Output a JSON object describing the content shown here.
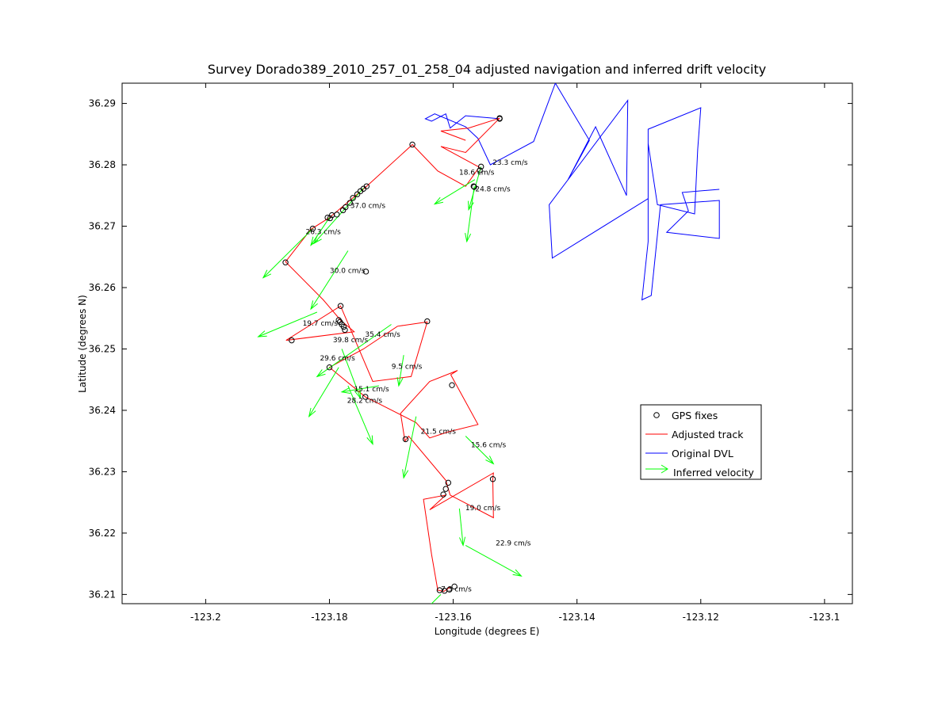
{
  "chart_data": {
    "type": "line",
    "title": "Survey Dorado389_2010_257_01_258_04 adjusted navigation and inferred drift velocity",
    "xlabel": "Longitude (degrees E)",
    "ylabel": "Latitude (degrees N)",
    "xlim": [
      -123.2135,
      -123.0955
    ],
    "ylim": [
      36.2085,
      36.2933
    ],
    "xticks": [
      -123.2,
      -123.18,
      -123.16,
      -123.14,
      -123.12,
      -123.1
    ],
    "yticks": [
      36.21,
      36.22,
      36.23,
      36.24,
      36.25,
      36.26,
      36.27,
      36.28,
      36.29
    ],
    "xtick_labels": [
      "-123.2",
      "-123.18",
      "-123.16",
      "-123.14",
      "-123.12",
      "-123.1"
    ],
    "ytick_labels": [
      "36.21",
      "36.22",
      "36.23",
      "36.24",
      "36.25",
      "36.26",
      "36.27",
      "36.28",
      "36.29"
    ],
    "grid": false,
    "legend_position": "right",
    "colors": {
      "gps": "#000000",
      "adjusted": "#ff0000",
      "dvl": "#0000ff",
      "velocity": "#00ff00"
    },
    "legend": [
      {
        "label": "GPS fixes",
        "kind": "marker",
        "color": "#000000"
      },
      {
        "label": "Adjusted track",
        "kind": "line",
        "color": "#ff0000"
      },
      {
        "label": "Original DVL",
        "kind": "line",
        "color": "#0000ff"
      },
      {
        "label": "Inferred velocity",
        "kind": "arrow",
        "color": "#00ff00"
      }
    ],
    "gps_fixes": [
      [
        -123.1525,
        36.2875
      ],
      [
        -123.1525,
        36.2876
      ],
      [
        -123.1666,
        36.2833
      ],
      [
        -123.1555,
        36.2797
      ],
      [
        -123.1557,
        36.2791
      ],
      [
        -123.1567,
        36.2765
      ],
      [
        -123.1566,
        36.2764
      ],
      [
        -123.174,
        36.2765
      ],
      [
        -123.1745,
        36.2761
      ],
      [
        -123.175,
        36.2757
      ],
      [
        -123.1755,
        36.2752
      ],
      [
        -123.1762,
        36.2746
      ],
      [
        -123.1767,
        36.2738
      ],
      [
        -123.1774,
        36.2731
      ],
      [
        -123.1778,
        36.2726
      ],
      [
        -123.1788,
        36.2719
      ],
      [
        -123.1796,
        36.2718
      ],
      [
        -123.1799,
        36.2713
      ],
      [
        -123.1803,
        36.2714
      ],
      [
        -123.1827,
        36.2696
      ],
      [
        -123.1871,
        36.2641
      ],
      [
        -123.1741,
        36.2626
      ],
      [
        -123.1782,
        36.257
      ],
      [
        -123.1642,
        36.2545
      ],
      [
        -123.1785,
        36.2547
      ],
      [
        -123.1783,
        36.2544
      ],
      [
        -123.178,
        36.254
      ],
      [
        -123.1777,
        36.2536
      ],
      [
        -123.1775,
        36.2531
      ],
      [
        -123.1861,
        36.2514
      ],
      [
        -123.18,
        36.247
      ],
      [
        -123.1742,
        36.2422
      ],
      [
        -123.1602,
        36.2441
      ],
      [
        -123.1677,
        36.2353
      ],
      [
        -123.1608,
        36.2282
      ],
      [
        -123.1612,
        36.2272
      ],
      [
        -123.1616,
        36.2263
      ],
      [
        -123.1536,
        36.2288
      ],
      [
        -123.1598,
        36.2113
      ],
      [
        -123.1606,
        36.2108
      ],
      [
        -123.1614,
        36.2106
      ],
      [
        -123.1622,
        36.2107
      ]
    ],
    "adjusted_track": [
      [
        -123.1605,
        36.2112
      ],
      [
        -123.1615,
        36.2105
      ],
      [
        -123.1625,
        36.2107
      ],
      [
        -123.1635,
        36.2165
      ],
      [
        -123.1648,
        36.2255
      ],
      [
        -123.1612,
        36.2262
      ],
      [
        -123.1638,
        36.2238
      ],
      [
        -123.1535,
        36.2298
      ],
      [
        -123.1536,
        36.2288
      ],
      [
        -123.1535,
        36.2225
      ],
      [
        -123.1605,
        36.2262
      ],
      [
        -123.1612,
        36.2286
      ],
      [
        -123.1672,
        36.2358
      ],
      [
        -123.1678,
        36.235
      ],
      [
        -123.1685,
        36.2395
      ],
      [
        -123.1638,
        36.2447
      ],
      [
        -123.1593,
        36.2465
      ],
      [
        -123.1604,
        36.2458
      ],
      [
        -123.156,
        36.2377
      ],
      [
        -123.1608,
        36.2365
      ],
      [
        -123.1638,
        36.2355
      ],
      [
        -123.166,
        36.238
      ],
      [
        -123.1742,
        36.2422
      ],
      [
        -123.18,
        36.247
      ],
      [
        -123.1745,
        36.25
      ],
      [
        -123.169,
        36.2537
      ],
      [
        -123.1642,
        36.2544
      ],
      [
        -123.1668,
        36.2455
      ],
      [
        -123.173,
        36.2447
      ],
      [
        -123.1782,
        36.257
      ],
      [
        -123.187,
        36.2514
      ],
      [
        -123.176,
        36.2528
      ],
      [
        -123.1782,
        36.2547
      ],
      [
        -123.181,
        36.258
      ],
      [
        -123.1871,
        36.2642
      ],
      [
        -123.183,
        36.2695
      ],
      [
        -123.18,
        36.2714
      ],
      [
        -123.174,
        36.2765
      ],
      [
        -123.1666,
        36.2833
      ],
      [
        -123.1625,
        36.279
      ],
      [
        -123.158,
        36.2765
      ],
      [
        -123.1558,
        36.2796
      ],
      [
        -123.162,
        36.283
      ],
      [
        -123.158,
        36.282
      ],
      [
        -123.1525,
        36.2876
      ],
      [
        -123.1575,
        36.286
      ],
      [
        -123.162,
        36.2855
      ],
      [
        -123.158,
        36.284
      ]
    ],
    "original_dvl": [
      [
        -123.1525,
        36.2875
      ],
      [
        -123.158,
        36.288
      ],
      [
        -123.1605,
        36.286
      ],
      [
        -123.1612,
        36.2883
      ],
      [
        -123.1635,
        36.2871
      ],
      [
        -123.1645,
        36.2875
      ],
      [
        -123.163,
        36.2883
      ],
      [
        -123.158,
        36.2862
      ],
      [
        -123.156,
        36.2843
      ],
      [
        -123.154,
        36.28
      ],
      [
        -123.147,
        36.2838
      ],
      [
        -123.1435,
        36.2933
      ],
      [
        -123.138,
        36.284
      ],
      [
        -123.1415,
        36.2775
      ],
      [
        -123.137,
        36.2862
      ],
      [
        -123.132,
        36.275
      ],
      [
        -123.1318,
        36.2905
      ],
      [
        -123.1445,
        36.2735
      ],
      [
        -123.144,
        36.2648
      ],
      [
        -123.1285,
        36.2745
      ],
      [
        -123.1285,
        36.2858
      ],
      [
        -123.12,
        36.2893
      ],
      [
        -123.1205,
        36.2825
      ],
      [
        -123.121,
        36.272
      ],
      [
        -123.127,
        36.2735
      ],
      [
        -123.1285,
        36.2835
      ],
      [
        -123.1285,
        36.2675
      ],
      [
        -123.1295,
        36.258
      ],
      [
        -123.128,
        36.2587
      ],
      [
        -123.1265,
        36.2735
      ],
      [
        -123.117,
        36.2742
      ],
      [
        -123.117,
        36.268
      ],
      [
        -123.1255,
        36.269
      ],
      [
        -123.122,
        36.2725
      ],
      [
        -123.123,
        36.2755
      ],
      [
        -123.117,
        36.276
      ]
    ],
    "velocity_vectors": [
      {
        "x": -123.1565,
        "y": 36.2776,
        "u": -0.0065,
        "v": -0.004,
        "label": "18.6 cm/s",
        "lx": -123.1562,
        "ly": 36.2784
      },
      {
        "x": -123.1555,
        "y": 36.2797,
        "u": -0.002,
        "v": -0.007,
        "label": "23.3 cm/s",
        "lx": -123.1508,
        "ly": 36.28
      },
      {
        "x": -123.1566,
        "y": 36.2765,
        "u": -0.0012,
        "v": -0.009,
        "label": "24.8 cm/s",
        "lx": -123.1536,
        "ly": 36.2757
      },
      {
        "x": -123.1745,
        "y": 36.2762,
        "u": -0.008,
        "v": -0.009,
        "label": "37.0 cm/s",
        "lx": -123.1738,
        "ly": 36.273
      },
      {
        "x": -123.18,
        "y": 36.2714,
        "u": -0.003,
        "v": -0.0045,
        "label": "26.3 cm/s",
        "lx": -123.181,
        "ly": 36.2687
      },
      {
        "x": -123.1827,
        "y": 36.2696,
        "u": -0.008,
        "v": -0.008,
        "label": "",
        "lx": 0,
        "ly": 0
      },
      {
        "x": -123.177,
        "y": 36.266,
        "u": -0.006,
        "v": -0.0095,
        "label": "30.0 cm/s",
        "lx": -123.1771,
        "ly": 36.2624
      },
      {
        "x": -123.182,
        "y": 36.256,
        "u": -0.0095,
        "v": -0.004,
        "label": "19.7 cm/s",
        "lx": -123.1815,
        "ly": 36.2538
      },
      {
        "x": -123.1785,
        "y": 36.247,
        "u": -0.0048,
        "v": -0.008,
        "label": "39.8 cm/s",
        "lx": -123.1766,
        "ly": 36.2511
      },
      {
        "x": -123.17,
        "y": 36.254,
        "u": -0.012,
        "v": -0.0085,
        "label": "35.4 cm/s",
        "lx": -123.1714,
        "ly": 36.252
      },
      {
        "x": -123.178,
        "y": 36.25,
        "u": 0.003,
        "v": -0.008,
        "label": "29.6 cm/s",
        "lx": -123.1787,
        "ly": 36.2481
      },
      {
        "x": -123.168,
        "y": 36.249,
        "u": -0.0008,
        "v": -0.005,
        "label": "9.5 cm/s",
        "lx": -123.1675,
        "ly": 36.2468
      },
      {
        "x": -123.172,
        "y": 36.244,
        "u": -0.006,
        "v": -0.001,
        "label": "15.1 cm/s",
        "lx": -123.1732,
        "ly": 36.2431
      },
      {
        "x": -123.177,
        "y": 36.244,
        "u": 0.004,
        "v": -0.0095,
        "label": "28.2 cm/s",
        "lx": -123.1743,
        "ly": 36.2412
      },
      {
        "x": -123.166,
        "y": 36.239,
        "u": -0.002,
        "v": -0.01,
        "label": "21.5 cm/s",
        "lx": -123.1624,
        "ly": 36.2362
      },
      {
        "x": -123.158,
        "y": 36.2358,
        "u": 0.0045,
        "v": -0.0045,
        "label": "15.6 cm/s",
        "lx": -123.1543,
        "ly": 36.234
      },
      {
        "x": -123.159,
        "y": 36.224,
        "u": 0.0006,
        "v": -0.006,
        "label": "19.0 cm/s",
        "lx": -123.1552,
        "ly": 36.2237
      },
      {
        "x": -123.158,
        "y": 36.218,
        "u": 0.009,
        "v": -0.005,
        "label": "22.9 cm/s",
        "lx": -123.1503,
        "ly": 36.218
      },
      {
        "x": -123.162,
        "y": 36.21,
        "u": -0.003,
        "v": -0.003,
        "label": "7.3 cm/s",
        "lx": -123.1595,
        "ly": 36.2105
      }
    ]
  }
}
